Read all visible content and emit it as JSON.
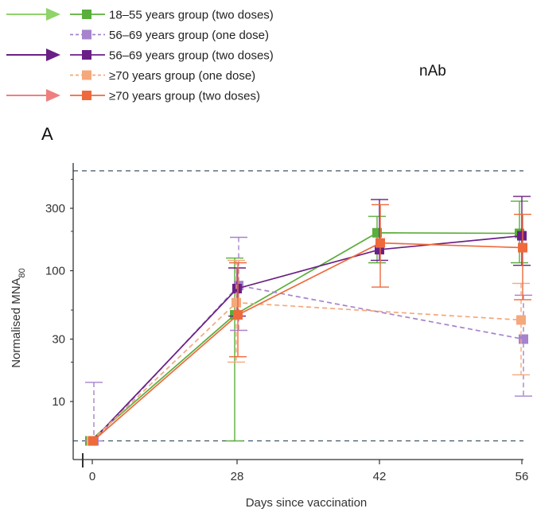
{
  "chart_data": {
    "type": "line",
    "panel_label": "A",
    "side_label": "nAb",
    "xlabel": "Days since vaccination",
    "ylabel": "Normalised MNA",
    "ylabel_subscript": "80",
    "y_scale": "log",
    "x_ticks": [
      0,
      28,
      42,
      56
    ],
    "y_ticks": [
      10,
      30,
      100,
      300
    ],
    "reference_lines": [
      5,
      580
    ],
    "series": [
      {
        "name": "18–55 years group (two doses)",
        "color": "#5aae3a",
        "dashed": false,
        "arrow": true,
        "arrow_color": "#8fd36a",
        "points": [
          {
            "x": 0,
            "y": 5,
            "lo": 5,
            "hi": 5
          },
          {
            "x": 28,
            "y": 46,
            "lo": 5,
            "hi": 125
          },
          {
            "x": 42,
            "y": 195,
            "lo": 115,
            "hi": 260
          },
          {
            "x": 56,
            "y": 193,
            "lo": 115,
            "hi": 340
          }
        ]
      },
      {
        "name": "56–69 years group (one dose)",
        "color": "#a683cc",
        "dashed": true,
        "arrow": false,
        "points": [
          {
            "x": 0,
            "y": 5,
            "lo": 5,
            "hi": 14
          },
          {
            "x": 28,
            "y": 77,
            "lo": 35,
            "hi": 180
          },
          {
            "x": 56,
            "y": 30,
            "lo": 11,
            "hi": 65
          }
        ]
      },
      {
        "name": "56–69 years group (two doses)",
        "color": "#6a1f86",
        "dashed": false,
        "arrow": true,
        "arrow_color": "#6a1f86",
        "points": [
          {
            "x": 0,
            "y": 5,
            "lo": 5,
            "hi": 5
          },
          {
            "x": 28,
            "y": 73,
            "lo": 45,
            "hi": 105
          },
          {
            "x": 42,
            "y": 145,
            "lo": 120,
            "hi": 350
          },
          {
            "x": 56,
            "y": 185,
            "lo": 110,
            "hi": 370
          }
        ]
      },
      {
        "name": "≥70 years group (one dose)",
        "color": "#f4a87c",
        "dashed": true,
        "arrow": false,
        "points": [
          {
            "x": 0,
            "y": 5,
            "lo": 5,
            "hi": 5
          },
          {
            "x": 28,
            "y": 57,
            "lo": 20,
            "hi": 120
          },
          {
            "x": 56,
            "y": 42,
            "lo": 16,
            "hi": 80
          }
        ]
      },
      {
        "name": "≥70 years group (two doses)",
        "color": "#ee6a3c",
        "dashed": false,
        "arrow": true,
        "arrow_color": "#ef7f7f",
        "points": [
          {
            "x": 0,
            "y": 5,
            "lo": 5,
            "hi": 5
          },
          {
            "x": 28,
            "y": 46,
            "lo": 22,
            "hi": 115
          },
          {
            "x": 42,
            "y": 163,
            "lo": 75,
            "hi": 320
          },
          {
            "x": 56,
            "y": 150,
            "lo": 60,
            "hi": 270
          }
        ]
      }
    ]
  }
}
